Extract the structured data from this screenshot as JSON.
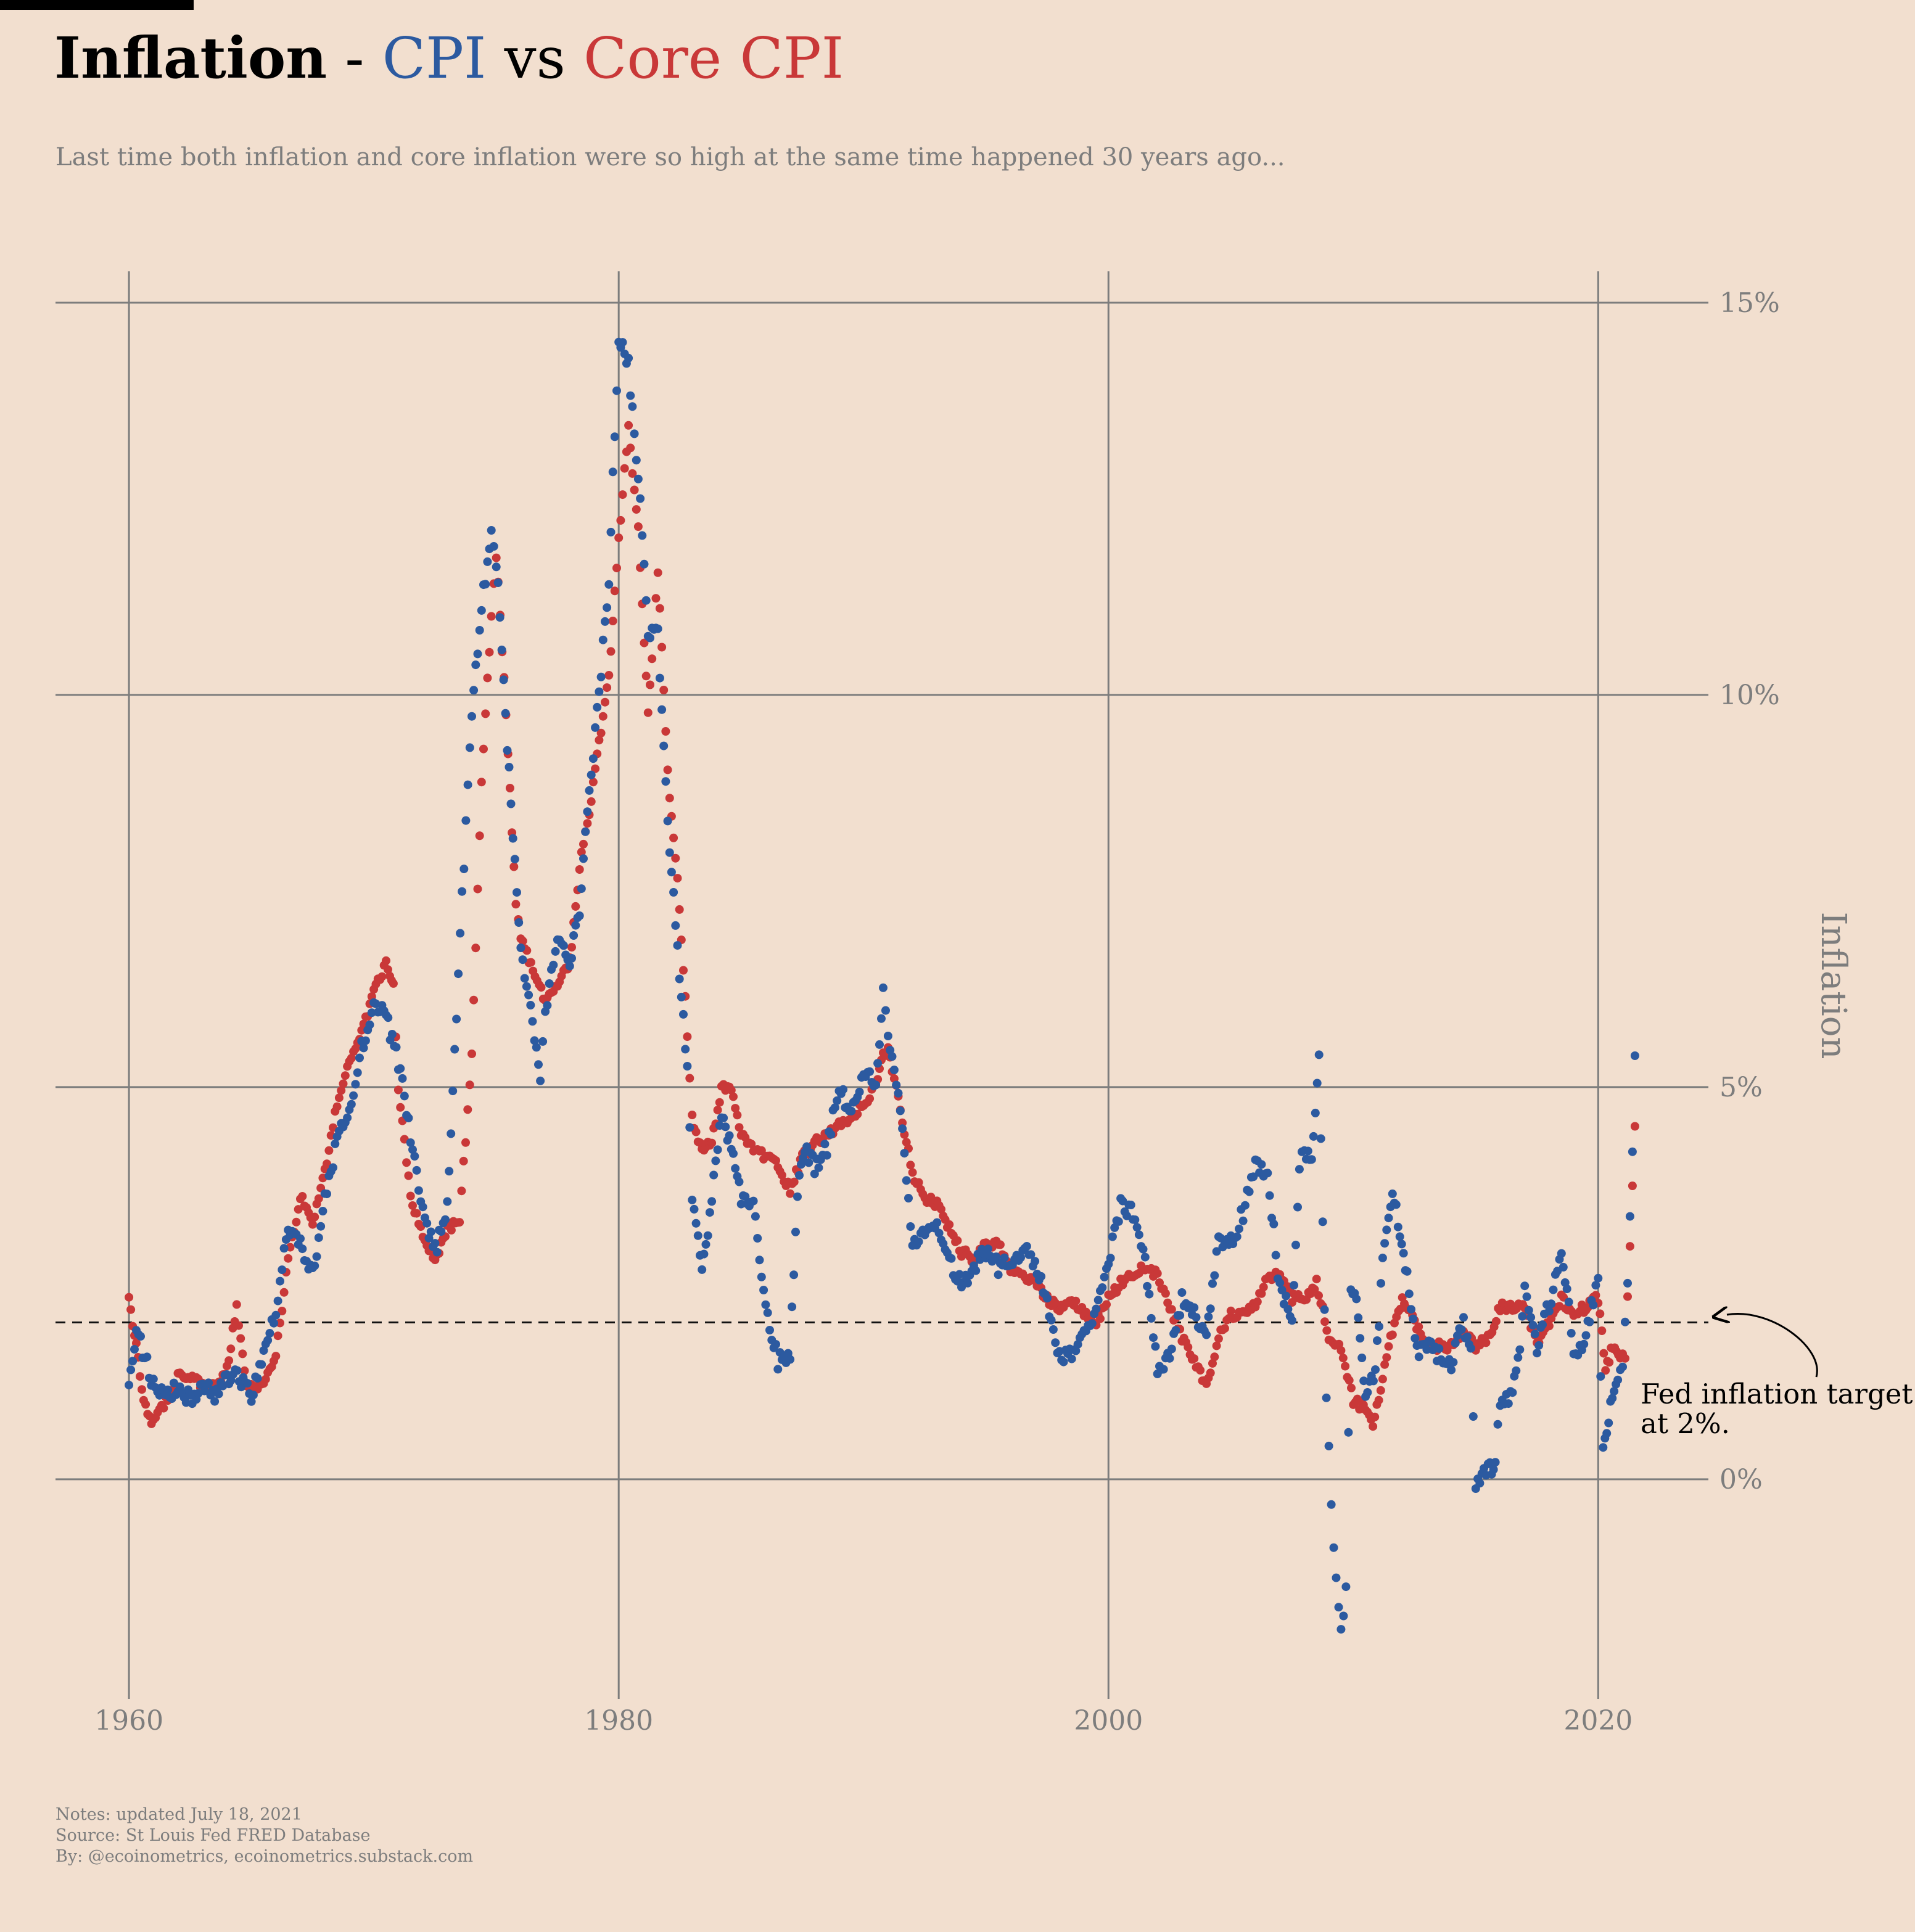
{
  "header": {
    "title_main": "Inflation",
    "title_dash": " - ",
    "title_cpi": "CPI",
    "title_vs": " vs ",
    "title_core": "Core CPI",
    "subtitle": "Last time both inflation and core inflation were so high at the same time happened 30 years ago..."
  },
  "footer": {
    "notes": "Notes: updated July 18, 2021",
    "source": "Source: St Louis Fed FRED Database",
    "by": "By: @ecoinometrics, ecoinometrics.substack.com"
  },
  "colors": {
    "cpi": "#2c5aa0",
    "core": "#c93838",
    "background": "#f2dfcf",
    "grid": "#7d7d7d"
  },
  "chart_data": {
    "type": "scatter",
    "title": "Inflation - CPI vs Core CPI",
    "ylabel": "Inflation",
    "xlabel": "",
    "xlim": [
      1957,
      2024.5
    ],
    "ylim": [
      -2.8,
      15.4
    ],
    "x_ticks": [
      1960,
      1980,
      2000,
      2020
    ],
    "x_tick_labels": [
      "1960",
      "1980",
      "2000",
      "2020"
    ],
    "y_ticks": [
      0,
      5,
      10,
      15
    ],
    "y_tick_labels": [
      "0%",
      "5%",
      "10%",
      "15%"
    ],
    "grid": true,
    "legend": "title-colored",
    "reference_line": {
      "y": 2,
      "style": "dashed",
      "label_line1": "Fed inflation target",
      "label_line2": "at 2%."
    },
    "anchors": {
      "cpi": [
        [
          1960.0,
          1.3
        ],
        [
          1960.3,
          1.9
        ],
        [
          1961.0,
          1.2
        ],
        [
          1961.5,
          1.0
        ],
        [
          1962.0,
          1.2
        ],
        [
          1962.5,
          1.0
        ],
        [
          1963.0,
          1.2
        ],
        [
          1963.5,
          1.1
        ],
        [
          1964.0,
          1.3
        ],
        [
          1964.5,
          1.3
        ],
        [
          1965.0,
          1.1
        ],
        [
          1965.5,
          1.6
        ],
        [
          1966.0,
          2.2
        ],
        [
          1966.5,
          3.2
        ],
        [
          1967.0,
          3.0
        ],
        [
          1967.5,
          2.6
        ],
        [
          1968.0,
          3.6
        ],
        [
          1968.5,
          4.3
        ],
        [
          1969.0,
          4.7
        ],
        [
          1969.5,
          5.5
        ],
        [
          1970.0,
          6.1
        ],
        [
          1970.5,
          5.9
        ],
        [
          1971.0,
          5.3
        ],
        [
          1971.5,
          4.4
        ],
        [
          1972.0,
          3.4
        ],
        [
          1972.5,
          2.9
        ],
        [
          1973.0,
          3.5
        ],
        [
          1973.3,
          5.5
        ],
        [
          1973.6,
          7.4
        ],
        [
          1974.0,
          9.8
        ],
        [
          1974.4,
          11.1
        ],
        [
          1974.8,
          12.1
        ],
        [
          1975.0,
          11.7
        ],
        [
          1975.3,
          10.2
        ],
        [
          1975.6,
          8.6
        ],
        [
          1976.0,
          6.8
        ],
        [
          1976.4,
          6.0
        ],
        [
          1976.8,
          5.1
        ],
        [
          1977.0,
          6.0
        ],
        [
          1977.5,
          6.8
        ],
        [
          1978.0,
          6.6
        ],
        [
          1978.4,
          7.2
        ],
        [
          1978.8,
          8.8
        ],
        [
          1979.2,
          10.0
        ],
        [
          1979.6,
          11.5
        ],
        [
          1980.0,
          14.6
        ],
        [
          1980.4,
          14.2
        ],
        [
          1980.8,
          12.8
        ],
        [
          1981.2,
          10.8
        ],
        [
          1981.6,
          10.8
        ],
        [
          1982.0,
          8.3
        ],
        [
          1982.4,
          6.8
        ],
        [
          1982.8,
          5.2
        ],
        [
          1983.0,
          3.6
        ],
        [
          1983.4,
          2.6
        ],
        [
          1983.8,
          3.6
        ],
        [
          1984.2,
          4.6
        ],
        [
          1984.6,
          4.2
        ],
        [
          1985.0,
          3.6
        ],
        [
          1985.5,
          3.5
        ],
        [
          1986.0,
          2.2
        ],
        [
          1986.5,
          1.5
        ],
        [
          1987.0,
          1.6
        ],
        [
          1987.3,
          3.7
        ],
        [
          1987.6,
          4.2
        ],
        [
          1988.0,
          4.0
        ],
        [
          1988.5,
          4.2
        ],
        [
          1989.0,
          5.0
        ],
        [
          1989.5,
          4.6
        ],
        [
          1990.0,
          5.2
        ],
        [
          1990.5,
          5.0
        ],
        [
          1990.8,
          6.3
        ],
        [
          1991.0,
          5.7
        ],
        [
          1991.5,
          4.8
        ],
        [
          1992.0,
          3.0
        ],
        [
          1992.5,
          3.2
        ],
        [
          1993.0,
          3.2
        ],
        [
          1993.5,
          2.8
        ],
        [
          1994.0,
          2.5
        ],
        [
          1994.5,
          2.7
        ],
        [
          1995.0,
          2.9
        ],
        [
          1995.5,
          2.7
        ],
        [
          1996.0,
          2.8
        ],
        [
          1996.5,
          2.9
        ],
        [
          1997.0,
          2.8
        ],
        [
          1997.5,
          2.3
        ],
        [
          1998.0,
          1.6
        ],
        [
          1998.5,
          1.6
        ],
        [
          1999.0,
          1.8
        ],
        [
          1999.5,
          2.1
        ],
        [
          2000.0,
          2.8
        ],
        [
          2000.5,
          3.5
        ],
        [
          2001.0,
          3.4
        ],
        [
          2001.5,
          2.8
        ],
        [
          2002.0,
          1.4
        ],
        [
          2002.5,
          1.6
        ],
        [
          2003.0,
          2.3
        ],
        [
          2003.5,
          2.1
        ],
        [
          2004.0,
          1.9
        ],
        [
          2004.5,
          3.0
        ],
        [
          2005.0,
          3.0
        ],
        [
          2005.5,
          3.4
        ],
        [
          2006.0,
          4.0
        ],
        [
          2006.5,
          3.9
        ],
        [
          2007.0,
          2.4
        ],
        [
          2007.5,
          2.1
        ],
        [
          2007.8,
          4.0
        ],
        [
          2008.0,
          4.2
        ],
        [
          2008.3,
          4.0
        ],
        [
          2008.6,
          5.4
        ],
        [
          2008.9,
          1.1
        ],
        [
          2009.1,
          -0.3
        ],
        [
          2009.3,
          -1.3
        ],
        [
          2009.5,
          -2.0
        ],
        [
          2009.7,
          -1.3
        ],
        [
          2009.9,
          2.5
        ],
        [
          2010.2,
          2.1
        ],
        [
          2010.5,
          1.1
        ],
        [
          2010.9,
          1.3
        ],
        [
          2011.2,
          2.8
        ],
        [
          2011.6,
          3.6
        ],
        [
          2011.9,
          3.2
        ],
        [
          2012.2,
          2.6
        ],
        [
          2012.6,
          1.6
        ],
        [
          2013.0,
          1.7
        ],
        [
          2013.5,
          1.6
        ],
        [
          2014.0,
          1.5
        ],
        [
          2014.5,
          2.0
        ],
        [
          2014.8,
          1.6
        ],
        [
          2015.0,
          -0.1
        ],
        [
          2015.5,
          0.1
        ],
        [
          2015.8,
          0.2
        ],
        [
          2016.0,
          1.0
        ],
        [
          2016.5,
          1.1
        ],
        [
          2016.8,
          1.7
        ],
        [
          2017.0,
          2.5
        ],
        [
          2017.5,
          1.6
        ],
        [
          2017.8,
          2.1
        ],
        [
          2018.0,
          2.2
        ],
        [
          2018.5,
          2.9
        ],
        [
          2018.8,
          2.3
        ],
        [
          2019.0,
          1.6
        ],
        [
          2019.5,
          1.8
        ],
        [
          2019.8,
          2.3
        ],
        [
          2020.0,
          2.5
        ],
        [
          2020.2,
          0.3
        ],
        [
          2020.5,
          1.0
        ],
        [
          2020.8,
          1.2
        ],
        [
          2021.0,
          1.4
        ],
        [
          2021.2,
          2.6
        ],
        [
          2021.4,
          4.2
        ],
        [
          2021.5,
          5.4
        ]
      ],
      "core": [
        [
          1960.0,
          2.3
        ],
        [
          1960.3,
          1.7
        ],
        [
          1960.6,
          1.0
        ],
        [
          1961.0,
          0.7
        ],
        [
          1961.5,
          1.0
        ],
        [
          1962.0,
          1.3
        ],
        [
          1962.5,
          1.3
        ],
        [
          1963.0,
          1.2
        ],
        [
          1963.5,
          1.2
        ],
        [
          1964.0,
          1.4
        ],
        [
          1964.4,
          2.2
        ],
        [
          1964.8,
          1.2
        ],
        [
          1965.0,
          1.2
        ],
        [
          1965.5,
          1.2
        ],
        [
          1966.0,
          1.6
        ],
        [
          1966.5,
          2.8
        ],
        [
          1967.0,
          3.6
        ],
        [
          1967.5,
          3.3
        ],
        [
          1968.0,
          3.9
        ],
        [
          1968.5,
          4.8
        ],
        [
          1969.0,
          5.3
        ],
        [
          1969.5,
          5.7
        ],
        [
          1970.0,
          6.2
        ],
        [
          1970.5,
          6.6
        ],
        [
          1970.8,
          6.3
        ],
        [
          1971.0,
          5.0
        ],
        [
          1971.5,
          3.6
        ],
        [
          1972.0,
          3.1
        ],
        [
          1972.5,
          2.8
        ],
        [
          1973.0,
          3.2
        ],
        [
          1973.5,
          3.3
        ],
        [
          1974.0,
          5.4
        ],
        [
          1974.4,
          8.9
        ],
        [
          1974.8,
          11.0
        ],
        [
          1975.0,
          11.8
        ],
        [
          1975.4,
          9.8
        ],
        [
          1975.8,
          7.3
        ],
        [
          1976.0,
          6.9
        ],
        [
          1976.5,
          6.5
        ],
        [
          1977.0,
          6.1
        ],
        [
          1977.5,
          6.3
        ],
        [
          1978.0,
          6.6
        ],
        [
          1978.4,
          7.8
        ],
        [
          1978.8,
          8.5
        ],
        [
          1979.2,
          9.4
        ],
        [
          1979.6,
          10.2
        ],
        [
          1980.0,
          12.0
        ],
        [
          1980.4,
          13.4
        ],
        [
          1980.8,
          12.1
        ],
        [
          1981.2,
          9.8
        ],
        [
          1981.6,
          11.6
        ],
        [
          1982.0,
          9.0
        ],
        [
          1982.4,
          7.7
        ],
        [
          1982.8,
          5.7
        ],
        [
          1983.0,
          4.6
        ],
        [
          1983.4,
          4.2
        ],
        [
          1983.8,
          4.3
        ],
        [
          1984.2,
          5.0
        ],
        [
          1984.6,
          5.0
        ],
        [
          1985.0,
          4.4
        ],
        [
          1985.5,
          4.2
        ],
        [
          1986.0,
          4.1
        ],
        [
          1986.5,
          4.0
        ],
        [
          1987.0,
          3.7
        ],
        [
          1987.5,
          4.1
        ],
        [
          1988.0,
          4.3
        ],
        [
          1988.5,
          4.4
        ],
        [
          1989.0,
          4.5
        ],
        [
          1989.5,
          4.6
        ],
        [
          1990.0,
          4.8
        ],
        [
          1990.5,
          5.0
        ],
        [
          1990.8,
          5.4
        ],
        [
          1991.0,
          5.5
        ],
        [
          1991.5,
          4.7
        ],
        [
          1992.0,
          3.9
        ],
        [
          1992.5,
          3.6
        ],
        [
          1993.0,
          3.5
        ],
        [
          1993.5,
          3.2
        ],
        [
          1994.0,
          2.9
        ],
        [
          1994.5,
          2.8
        ],
        [
          1995.0,
          3.0
        ],
        [
          1995.5,
          3.0
        ],
        [
          1996.0,
          2.7
        ],
        [
          1996.5,
          2.6
        ],
        [
          1997.0,
          2.5
        ],
        [
          1997.5,
          2.3
        ],
        [
          1998.0,
          2.2
        ],
        [
          1998.5,
          2.3
        ],
        [
          1999.0,
          2.1
        ],
        [
          1999.5,
          2.0
        ],
        [
          2000.0,
          2.3
        ],
        [
          2000.5,
          2.5
        ],
        [
          2001.0,
          2.6
        ],
        [
          2001.5,
          2.7
        ],
        [
          2002.0,
          2.6
        ],
        [
          2002.5,
          2.2
        ],
        [
          2003.0,
          1.8
        ],
        [
          2003.5,
          1.5
        ],
        [
          2004.0,
          1.2
        ],
        [
          2004.5,
          1.8
        ],
        [
          2005.0,
          2.1
        ],
        [
          2005.5,
          2.1
        ],
        [
          2006.0,
          2.2
        ],
        [
          2006.5,
          2.6
        ],
        [
          2007.0,
          2.6
        ],
        [
          2007.5,
          2.3
        ],
        [
          2008.0,
          2.3
        ],
        [
          2008.5,
          2.5
        ],
        [
          2009.0,
          1.8
        ],
        [
          2009.5,
          1.7
        ],
        [
          2010.0,
          1.0
        ],
        [
          2010.5,
          0.9
        ],
        [
          2010.8,
          0.7
        ],
        [
          2011.2,
          1.3
        ],
        [
          2011.6,
          1.9
        ],
        [
          2012.0,
          2.3
        ],
        [
          2012.5,
          2.0
        ],
        [
          2013.0,
          1.7
        ],
        [
          2013.5,
          1.7
        ],
        [
          2014.0,
          1.7
        ],
        [
          2014.5,
          1.9
        ],
        [
          2015.0,
          1.7
        ],
        [
          2015.5,
          1.8
        ],
        [
          2016.0,
          2.2
        ],
        [
          2016.5,
          2.2
        ],
        [
          2017.0,
          2.2
        ],
        [
          2017.5,
          1.7
        ],
        [
          2018.0,
          2.0
        ],
        [
          2018.5,
          2.3
        ],
        [
          2019.0,
          2.1
        ],
        [
          2019.5,
          2.2
        ],
        [
          2019.8,
          2.3
        ],
        [
          2020.0,
          2.3
        ],
        [
          2020.3,
          1.4
        ],
        [
          2020.6,
          1.7
        ],
        [
          2020.9,
          1.6
        ],
        [
          2021.1,
          1.6
        ],
        [
          2021.3,
          3.0
        ],
        [
          2021.4,
          3.8
        ],
        [
          2021.5,
          4.5
        ]
      ]
    }
  }
}
